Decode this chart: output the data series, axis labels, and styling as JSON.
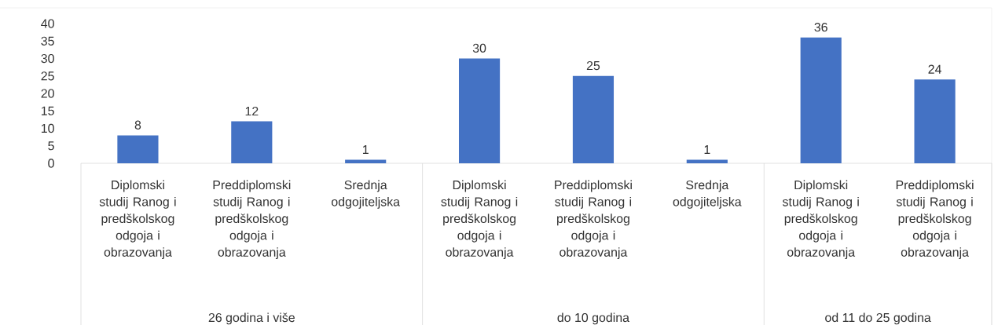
{
  "chart_data": {
    "type": "bar",
    "categories": [
      "Diplomski studij Ranog i predškolskog odgoja i obrazovanja",
      "Preddiplomski studij Ranog i predškolskog odgoja i obrazovanja",
      "Srednja odgojiteljska",
      "Diplomski studij Ranog i predškolskog odgoja i obrazovanja",
      "Preddiplomski studij Ranog i predškolskog odgoja i obrazovanja",
      "Srednja odgojiteljska",
      "Diplomski studij Ranog i predškolskog odgoja i obrazovanja",
      "Preddiplomski studij Ranog i predškolskog odgoja i obrazovanja"
    ],
    "values": [
      8,
      12,
      1,
      30,
      25,
      1,
      36,
      24
    ],
    "color": "#4472c4",
    "ylim": [
      0,
      40
    ],
    "yticks": [
      0,
      5,
      10,
      15,
      20,
      25,
      30,
      35,
      40
    ],
    "data_labels": true,
    "annotations": [
      "26 godina i više",
      "do 10 godina",
      "od 11 do 25 godina"
    ]
  }
}
